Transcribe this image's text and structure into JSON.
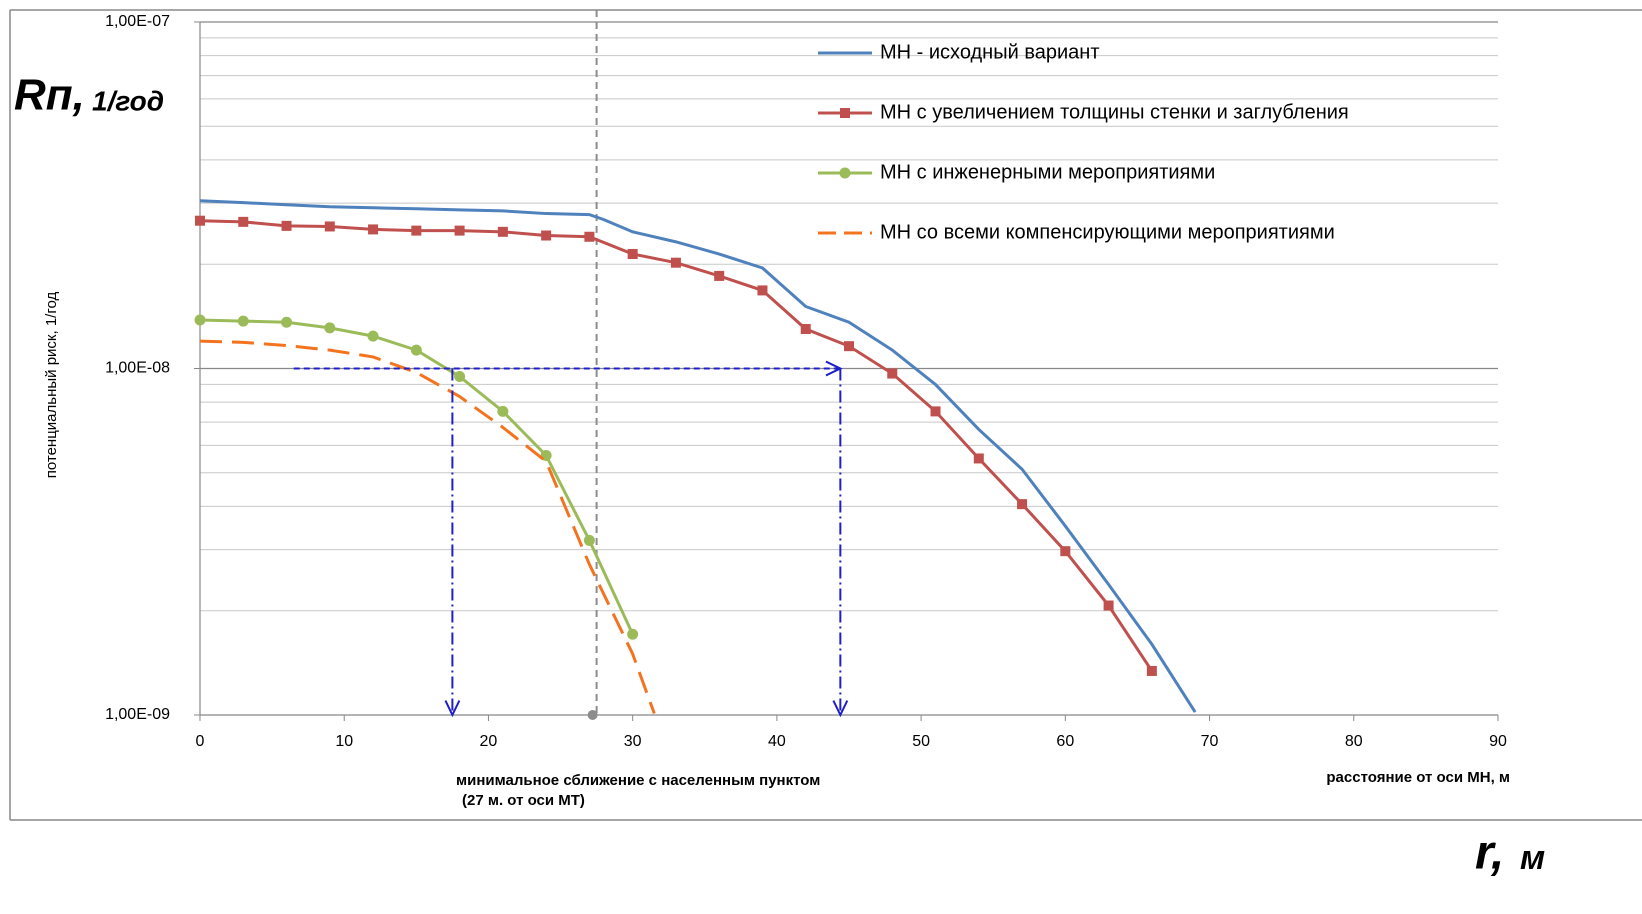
{
  "chart_data": {
    "type": "line",
    "title": "Rп,",
    "title_unit": "1/год",
    "ylabel": "потенциальный риск, 1/год",
    "xlabel": "расстояние от оси МН, м",
    "corner_label": "r,",
    "corner_unit": "м",
    "annotation_lines": [
      "минимальное сближение с населенным пунктом",
      "(27 м. от оси МТ)"
    ],
    "log_y": true,
    "grid": true,
    "minor_grid": true,
    "legend": "top-right",
    "xlim": [
      0,
      90
    ],
    "xticks": [
      0,
      10,
      20,
      30,
      40,
      50,
      60,
      70,
      80,
      90
    ],
    "ylim": [
      1e-09,
      1e-07
    ],
    "yticks": [
      {
        "value": 1e-09,
        "label": "1,00E-09"
      },
      {
        "value": 1e-08,
        "label": "1,00E-08"
      },
      {
        "value": 1e-07,
        "label": "1,00E-07"
      }
    ],
    "series": [
      {
        "name": "МН - исходный вариант",
        "color": "#4f81bd",
        "marker": "none",
        "dash": false,
        "x": [
          0,
          3,
          6,
          9,
          12,
          15,
          18,
          21,
          24,
          27,
          28,
          30,
          33,
          36,
          39,
          42,
          45,
          48,
          51,
          54,
          57,
          60,
          63,
          66,
          69
        ],
        "values": [
          3.05e-08,
          3.01e-08,
          2.97e-08,
          2.93e-08,
          2.91e-08,
          2.89e-08,
          2.87e-08,
          2.85e-08,
          2.8e-08,
          2.78e-08,
          2.69e-08,
          2.48e-08,
          2.32e-08,
          2.14e-08,
          1.95e-08,
          1.51e-08,
          1.36e-08,
          1.13e-08,
          8.99e-09,
          6.67e-09,
          5.12e-09,
          3.51e-09,
          2.38e-09,
          1.6e-09,
          1.02e-09
        ]
      },
      {
        "name": "МН с увеличением толщины стенки и заглубления",
        "color": "#c0504d",
        "marker": "square",
        "dash": false,
        "x": [
          0,
          3,
          6,
          9,
          12,
          15,
          18,
          21,
          24,
          27,
          30,
          33,
          36,
          39,
          42,
          45,
          48,
          51,
          54,
          57,
          60,
          63,
          66
        ],
        "values": [
          2.67e-08,
          2.65e-08,
          2.58e-08,
          2.57e-08,
          2.52e-08,
          2.5e-08,
          2.5e-08,
          2.48e-08,
          2.42e-08,
          2.4e-08,
          2.14e-08,
          2.02e-08,
          1.85e-08,
          1.68e-08,
          1.3e-08,
          1.16e-08,
          9.67e-09,
          7.52e-09,
          5.5e-09,
          4.06e-09,
          2.97e-09,
          2.07e-09,
          1.34e-09
        ]
      },
      {
        "name": "МН с инженерными мероприятиями",
        "color": "#9bbb59",
        "marker": "circle",
        "dash": false,
        "x": [
          0,
          3,
          6,
          9,
          12,
          15,
          18,
          21,
          24,
          27,
          30
        ],
        "values": [
          1.38e-08,
          1.37e-08,
          1.36e-08,
          1.31e-08,
          1.24e-08,
          1.13e-08,
          9.48e-09,
          7.52e-09,
          5.61e-09,
          3.19e-09,
          1.71e-09
        ]
      },
      {
        "name": "МН со всеми компенсирующими мероприятиями",
        "color": "#f4731f",
        "marker": "none",
        "dash": true,
        "x": [
          0,
          3,
          6,
          9,
          12,
          15,
          18,
          21,
          24,
          27,
          30,
          31.5
        ],
        "values": [
          1.2e-08,
          1.19e-08,
          1.165e-08,
          1.13e-08,
          1.08e-08,
          9.74e-09,
          8.3e-09,
          6.76e-09,
          5.39e-09,
          2.72e-09,
          1.5e-09,
          1.01e-09
        ]
      }
    ],
    "min_distance_x": 27.5,
    "arrows": [
      {
        "x": [
          6.5,
          44.4
        ],
        "y": [
          1e-08,
          1e-08
        ]
      },
      {
        "x": [
          17.5,
          17.5
        ],
        "y": [
          1e-08,
          1e-09
        ]
      },
      {
        "x": [
          44.4,
          44.4
        ],
        "y": [
          1e-08,
          1e-09
        ]
      }
    ]
  }
}
